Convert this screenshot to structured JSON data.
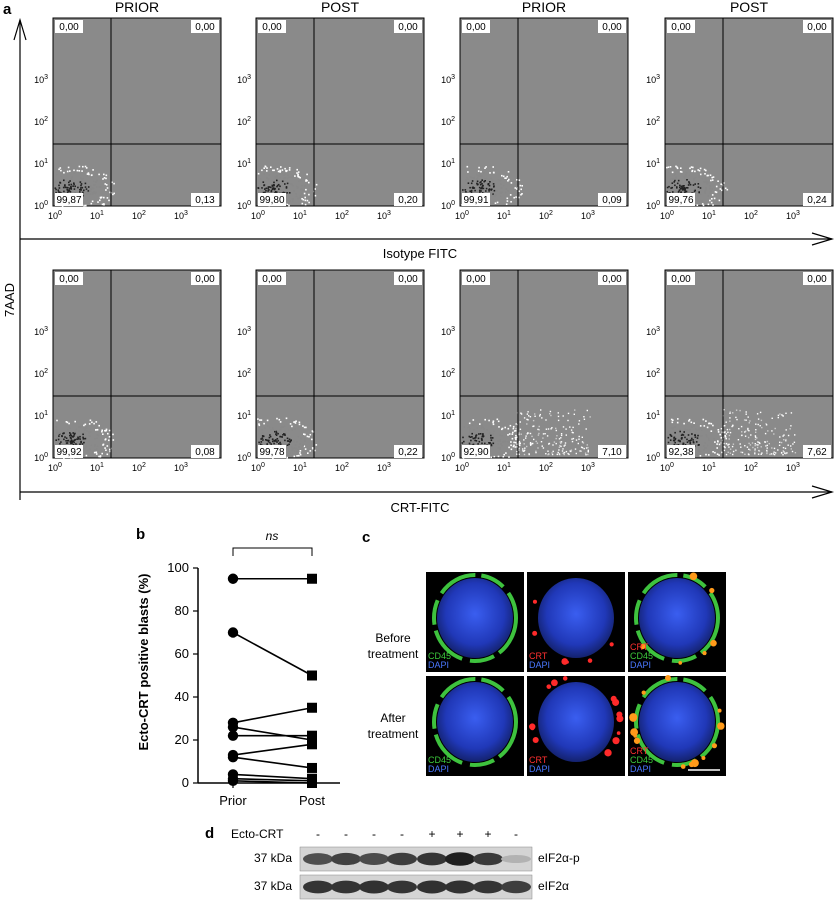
{
  "figure": {
    "panel_labels": {
      "a": "a",
      "b": "b",
      "c": "c",
      "d": "d"
    },
    "panel_a": {
      "y_axis_label": "7AAD",
      "row_axis_labels": [
        "Isotype FITC",
        "CRT-FITC"
      ],
      "tick_labels": {
        "x": [
          "10",
          "10",
          "10",
          "10"
        ],
        "x_exp": [
          "0",
          "1",
          "2",
          "3"
        ],
        "y": [
          "10",
          "10",
          "10",
          "10"
        ],
        "y_exp": [
          "0",
          "1",
          "2",
          "3"
        ]
      },
      "plots": [
        {
          "title": "PRIOR",
          "ul": "0,00",
          "ur": "0,00",
          "ll": "99,87",
          "lr": "0,13",
          "spread": 0
        },
        {
          "title": "POST",
          "ul": "0,00",
          "ur": "0,00",
          "ll": "99,80",
          "lr": "0,20",
          "spread": 0
        },
        {
          "title": "PRIOR",
          "ul": "0,00",
          "ur": "0,00",
          "ll": "99,91",
          "lr": "0,09",
          "spread": 0
        },
        {
          "title": "POST",
          "ul": "0,00",
          "ur": "0,00",
          "ll": "99,76",
          "lr": "0,24",
          "spread": 0
        },
        {
          "title": "",
          "ul": "0,00",
          "ur": "0,00",
          "ll": "99,92",
          "lr": "0,08",
          "spread": 0
        },
        {
          "title": "",
          "ul": "0,00",
          "ur": "0,00",
          "ll": "99,78",
          "lr": "0,22",
          "spread": 0
        },
        {
          "title": "",
          "ul": "0,00",
          "ur": "0,00",
          "ll": "92,90",
          "lr": "7,10",
          "spread": 1
        },
        {
          "title": "",
          "ul": "0,00",
          "ur": "0,00",
          "ll": "92,38",
          "lr": "7,62",
          "spread": 1
        }
      ]
    },
    "panel_c": {
      "row_labels": [
        [
          "Before",
          "treatment"
        ],
        [
          "After",
          "treatment"
        ]
      ],
      "images": [
        {
          "labels": [
            "CD45",
            "DAPI"
          ],
          "colors": [
            "#3cc83c",
            "#4a78ff"
          ],
          "ring": "green"
        },
        {
          "labels": [
            "CRT",
            "DAPI"
          ],
          "colors": [
            "#ff3030",
            "#4a78ff"
          ],
          "ring": "red"
        },
        {
          "labels": [
            "CRT",
            "CD45",
            "DAPI"
          ],
          "colors": [
            "#ff3030",
            "#3cc83c",
            "#4a78ff"
          ],
          "ring": "merge"
        }
      ]
    },
    "panel_d": {
      "row_title": "Ecto-CRT",
      "lane_signs": [
        "-",
        "-",
        "-",
        "-",
        "+",
        "+",
        "+",
        "-"
      ],
      "bands": [
        {
          "kda": "37 kDa",
          "label": "eIF2α-p",
          "intensity": [
            0.72,
            0.78,
            0.74,
            0.8,
            0.85,
            0.95,
            0.82,
            0.25
          ]
        },
        {
          "kda": "37 kDa",
          "label": "eIF2α",
          "intensity": [
            0.85,
            0.85,
            0.86,
            0.85,
            0.86,
            0.86,
            0.85,
            0.8
          ]
        }
      ]
    }
  },
  "chart_data": {
    "type": "scatter",
    "title": "",
    "significance": "ns",
    "categories": [
      "Prior",
      "Post"
    ],
    "ylabel": "Ecto-CRT positive blasts (%)",
    "xlabel": "",
    "ylim": [
      0,
      100
    ],
    "yticks": [
      0,
      20,
      40,
      60,
      80,
      100
    ],
    "pairs": [
      [
        95,
        95
      ],
      [
        70,
        50
      ],
      [
        28,
        35
      ],
      [
        26,
        20
      ],
      [
        22,
        22
      ],
      [
        13,
        18
      ],
      [
        12,
        7
      ],
      [
        4,
        2
      ],
      [
        2,
        1
      ],
      [
        1,
        0
      ]
    ]
  }
}
